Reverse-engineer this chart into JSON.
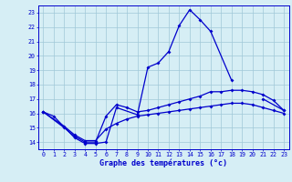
{
  "title": "Graphe des températures (°c)",
  "background_color": "#d6eef5",
  "grid_color": "#a0c8d8",
  "line_color": "#0000cc",
  "hours": [
    0,
    1,
    2,
    3,
    4,
    5,
    6,
    7,
    8,
    9,
    10,
    11,
    12,
    13,
    14,
    15,
    16,
    17,
    18,
    19,
    20,
    21,
    22,
    23
  ],
  "curve_main_x": [
    0,
    1,
    3,
    4,
    5,
    6,
    7,
    9,
    10,
    11,
    12,
    13,
    14,
    15,
    16,
    18,
    20,
    21,
    23
  ],
  "curve_main_y": [
    16.1,
    15.8,
    14.3,
    13.9,
    13.9,
    14.0,
    16.4,
    15.9,
    19.2,
    19.5,
    20.3,
    22.1,
    23.2,
    22.5,
    21.7,
    18.3,
    null,
    17.0,
    16.2
  ],
  "curve2_x": [
    0,
    2,
    3,
    4,
    5,
    6,
    7,
    8,
    9,
    10,
    11,
    12,
    13,
    14,
    15,
    16,
    17,
    18,
    19,
    20,
    21,
    22,
    23
  ],
  "curve2_y": [
    16.1,
    15.0,
    14.4,
    14.0,
    14.0,
    15.8,
    16.6,
    16.4,
    16.1,
    16.2,
    16.4,
    16.6,
    16.8,
    17.0,
    17.2,
    17.5,
    17.5,
    17.6,
    17.6,
    17.5,
    17.3,
    16.9,
    16.2
  ],
  "curve3_x": [
    0,
    2,
    3,
    4,
    5,
    6,
    7,
    8,
    9,
    10,
    11,
    12,
    13,
    14,
    15,
    16,
    17,
    18,
    19,
    20,
    21,
    22,
    23
  ],
  "curve3_y": [
    16.1,
    15.1,
    14.5,
    14.1,
    14.1,
    14.9,
    15.3,
    15.6,
    15.8,
    15.9,
    16.0,
    16.1,
    16.2,
    16.3,
    16.4,
    16.5,
    16.6,
    16.7,
    16.7,
    16.6,
    16.4,
    16.2,
    16.0
  ],
  "ylim": [
    13.5,
    23.5
  ],
  "yticks": [
    14,
    15,
    16,
    17,
    18,
    19,
    20,
    21,
    22,
    23
  ],
  "xlim": [
    -0.5,
    23.5
  ]
}
